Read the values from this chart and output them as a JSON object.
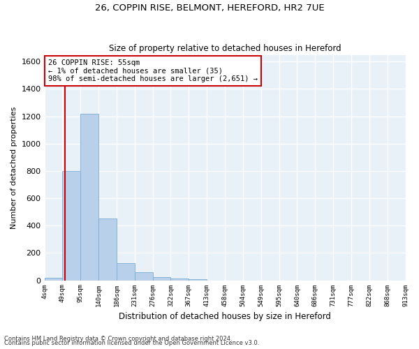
{
  "title_line1": "26, COPPIN RISE, BELMONT, HEREFORD, HR2 7UE",
  "title_line2": "Size of property relative to detached houses in Hereford",
  "xlabel": "Distribution of detached houses by size in Hereford",
  "ylabel": "Number of detached properties",
  "bar_values": [
    20,
    800,
    1220,
    450,
    125,
    60,
    25,
    15,
    10,
    0,
    0,
    0,
    0,
    0,
    0,
    0,
    0,
    0,
    0,
    0
  ],
  "xtick_labels": [
    "4sqm",
    "49sqm",
    "95sqm",
    "140sqm",
    "186sqm",
    "231sqm",
    "276sqm",
    "322sqm",
    "367sqm",
    "413sqm",
    "458sqm",
    "504sqm",
    "549sqm",
    "595sqm",
    "640sqm",
    "686sqm",
    "731sqm",
    "777sqm",
    "822sqm",
    "868sqm",
    "913sqm"
  ],
  "bar_color": "#b8d0ea",
  "bar_edgecolor": "#7aadd4",
  "background_color": "#e8f0f8",
  "grid_color": "#ffffff",
  "vline_color": "#cc0000",
  "annotation_text": "26 COPPIN RISE: 55sqm\n← 1% of detached houses are smaller (35)\n98% of semi-detached houses are larger (2,651) →",
  "annotation_box_facecolor": "#ffffff",
  "annotation_box_edgecolor": "#cc0000",
  "ylim": [
    0,
    1650
  ],
  "yticks": [
    0,
    200,
    400,
    600,
    800,
    1000,
    1200,
    1400,
    1600
  ],
  "footnote1": "Contains HM Land Registry data © Crown copyright and database right 2024.",
  "footnote2": "Contains public sector information licensed under the Open Government Licence v3.0."
}
